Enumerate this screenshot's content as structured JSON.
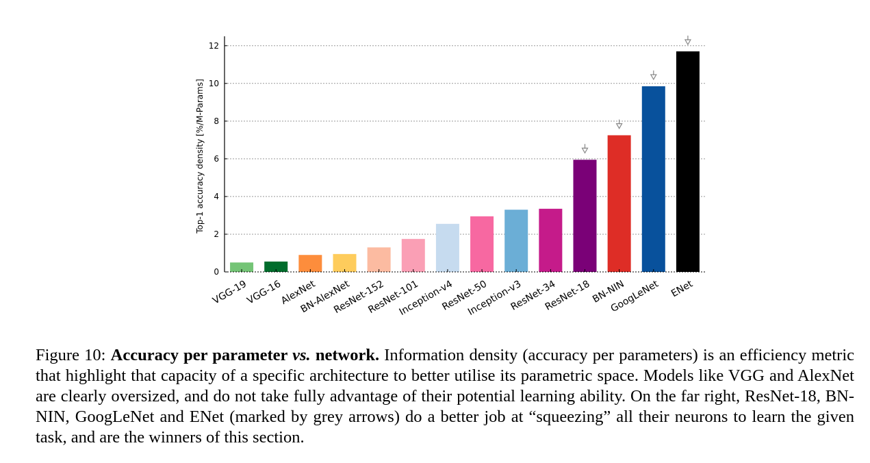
{
  "chart_data": {
    "type": "bar",
    "categories": [
      "VGG-19",
      "VGG-16",
      "AlexNet",
      "BN-AlexNet",
      "ResNet-152",
      "ResNet-101",
      "Inception-v4",
      "ResNet-50",
      "Inception-v3",
      "ResNet-34",
      "ResNet-18",
      "BN-NIN",
      "GoogLeNet",
      "ENet"
    ],
    "values": [
      0.5,
      0.55,
      0.9,
      0.95,
      1.3,
      1.75,
      2.55,
      2.95,
      3.3,
      3.35,
      5.95,
      7.25,
      9.85,
      11.7
    ],
    "colors": [
      "#74c476",
      "#006d2c",
      "#fd8d3c",
      "#fecc5c",
      "#fcbba1",
      "#fa9fb5",
      "#c6dbef",
      "#f768a1",
      "#6baed6",
      "#c51b8a",
      "#7a0177",
      "#de2d26",
      "#08519c",
      "#000000"
    ],
    "arrow_marked": [
      "ResNet-18",
      "BN-NIN",
      "GoogLeNet",
      "ENet"
    ],
    "arrow_color": "#888888",
    "ylabel": "Top-1 accuracy density [%/M-Params]",
    "ylim": [
      0,
      12.5
    ],
    "yticks": [
      "0",
      "2",
      "4",
      "6",
      "8",
      "10",
      "12"
    ],
    "grid": true
  },
  "caption": {
    "label": "Figure 10:",
    "title_part1": "Accuracy per parameter",
    "title_vs": "vs.",
    "title_part2": "network.",
    "body": "Information density (accuracy per parameters) is an efficiency metric that highlight that capacity of a specific architecture to better utilise its parametric space. Models like VGG and AlexNet are clearly oversized, and do not take fully advantage of their potential learning ability. On the far right, ResNet-18, BN-NIN, GoogLeNet and ENet (marked by grey arrows) do a better job at “squeezing” all their neurons to learn the given task, and are the winners of this section."
  }
}
